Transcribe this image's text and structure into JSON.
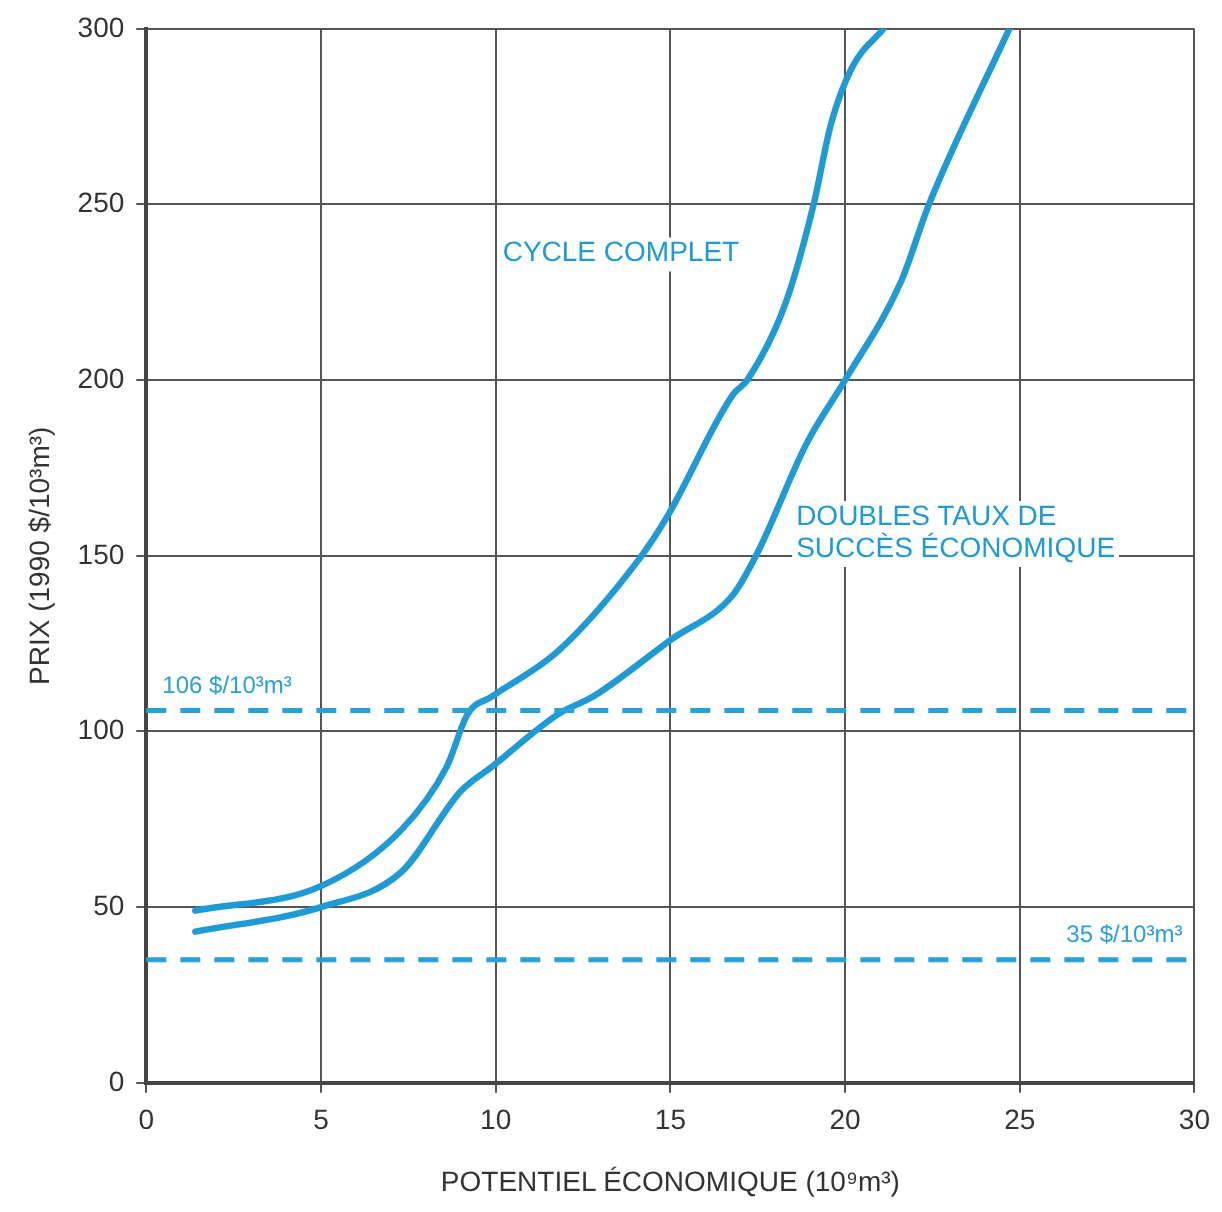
{
  "chart_data": {
    "type": "line",
    "xlabel": "POTENTIEL ÉCONOMIQUE (10⁹m³)",
    "ylabel": "PRIX (1990 $/10³m³)",
    "xlim": [
      0,
      30
    ],
    "xticks": [
      0,
      5,
      10,
      15,
      20,
      25,
      30
    ],
    "ylim": [
      0,
      300
    ],
    "yticks": [
      0,
      50,
      100,
      150,
      200,
      250,
      300
    ],
    "grid": true,
    "legend": false,
    "marker": "none",
    "line_style": "solid",
    "series": [
      {
        "name": "CYCLE COMPLET",
        "color": "#1e9ad6",
        "x": [
          1.4,
          5,
          7.3,
          8.6,
          9.2,
          9.9,
          11.8,
          14.1,
          14.9,
          16.8,
          17.2,
          18.3,
          19.1,
          19.6,
          20.2,
          21.1
        ],
        "values": [
          49,
          56,
          72,
          90,
          105,
          110,
          123,
          149,
          161,
          196,
          200,
          222,
          250,
          273,
          289,
          300
        ]
      },
      {
        "name": "DOUBLES TAUX DE SUCCÈS ÉCONOMIQUE",
        "color": "#1e9ad6",
        "x": [
          1.4,
          5,
          7.3,
          9.0,
          9.9,
          11.8,
          12.8,
          15.0,
          16.8,
          17.5,
          18.9,
          20.0,
          21.6,
          22.4,
          24.7
        ],
        "values": [
          43,
          50,
          60,
          83,
          90,
          105,
          110,
          126,
          139,
          151,
          182,
          200,
          228,
          250,
          300
        ]
      }
    ],
    "ref_lines": [
      {
        "axis": "y",
        "value": 106,
        "label": "106 $/10³m³",
        "color": "#2aa0d8",
        "line_style": "dashed"
      },
      {
        "axis": "y",
        "value": 35,
        "label": "35 $/10³m³",
        "color": "#2aa0d8",
        "line_style": "dashed"
      }
    ]
  }
}
